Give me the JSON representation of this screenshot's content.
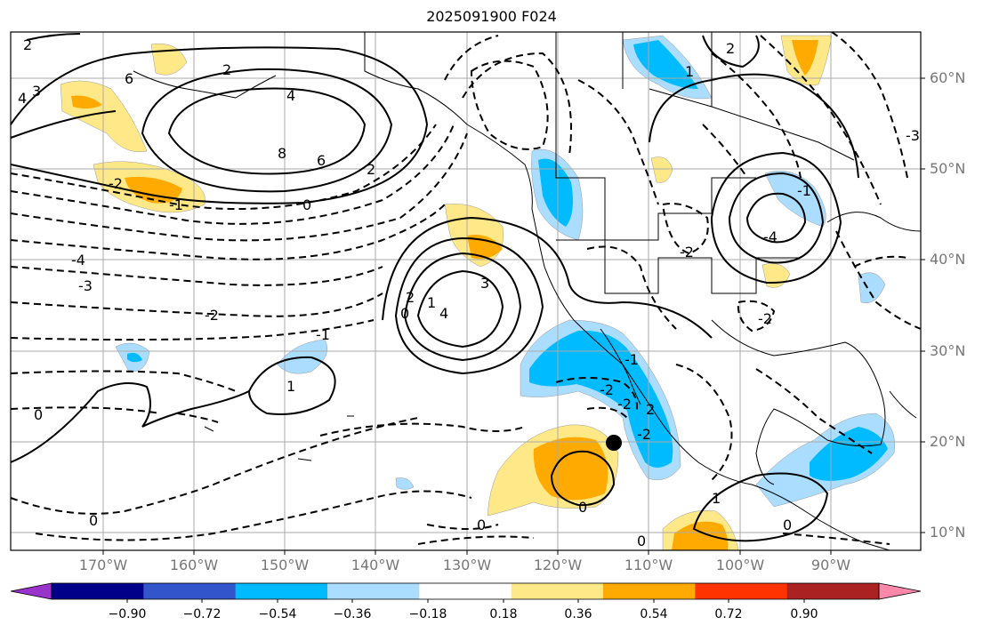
{
  "title": "2025091900 F024",
  "lat_labels": [
    "60°N",
    "50°N",
    "40°N",
    "30°N",
    "20°N",
    "10°N"
  ],
  "lon_labels": [
    "170°W",
    "160°W",
    "150°W",
    "140°W",
    "130°W",
    "120°W",
    "110°W",
    "100°W",
    "90°W"
  ],
  "colorbar": {
    "colors": [
      "#9933cc",
      "#000088",
      "#3355cc",
      "#00bbff",
      "#aaddff",
      "#ffffff",
      "#ffe888",
      "#ffaa00",
      "#ff3300",
      "#aa2222",
      "#ff88aa"
    ],
    "tick_labels": [
      "−0.90",
      "−0.72",
      "−0.54",
      "−0.36",
      "−0.18",
      "0.18",
      "0.36",
      "0.54",
      "0.72",
      "0.90"
    ]
  },
  "contour_labels": [
    "2",
    "6",
    "3",
    "4",
    "2",
    "4",
    "8",
    "6",
    "2",
    "0",
    "-1",
    "-2",
    "-4",
    "-3",
    "-2",
    "-1",
    "1",
    "0",
    "0",
    "3",
    "4",
    "1",
    "0",
    "2",
    "1",
    "2",
    "-2",
    "-2",
    "-1",
    "2",
    "-2",
    "-2",
    "1",
    "0",
    "0",
    "0",
    "0",
    "-3",
    "-4",
    "-1",
    "-2"
  ],
  "marker": {
    "type": "dot",
    "color": "#000000"
  }
}
